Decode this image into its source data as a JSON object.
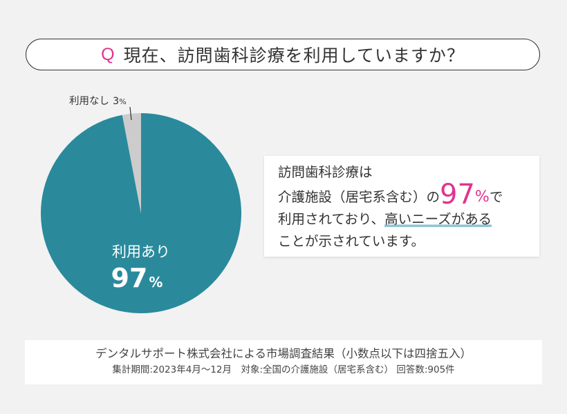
{
  "question": {
    "mark": "Q",
    "text": "現在、訪問歯科診療を利用していますか？"
  },
  "colors": {
    "primary": "#2a8a9c",
    "secondary": "#cccccc",
    "accent": "#e0348f"
  },
  "chart_data": {
    "type": "pie",
    "slices": [
      {
        "label": "利用あり",
        "value": 97,
        "value_text": "97",
        "unit": "%",
        "color": "#2a8a9c"
      },
      {
        "label": "利用なし",
        "value": 3,
        "value_text": "3",
        "unit": "%",
        "color": "#cccccc"
      }
    ]
  },
  "callout": {
    "line1": "訪問歯科診療は",
    "line2_pre": "介護施設（居宅系含む）の",
    "big": "97",
    "pct": "%",
    "line2_post": "で",
    "line3_pre": "利用されており、",
    "line3_underline": "高いニーズがある",
    "line4": "ことが示されています。"
  },
  "source": {
    "line1": "デンタルサポート株式会社による市場調査結果（小数点以下は四捨五入）",
    "line2": "集計期間:2023年4月〜12月　対象:全国の介護施設（居宅系含む） 回答数:905件"
  }
}
